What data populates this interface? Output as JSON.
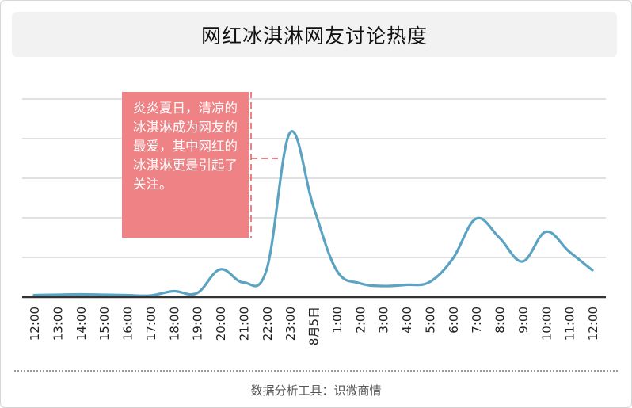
{
  "title": "网红冰淇淋网友讨论热度",
  "footer": "数据分析工具：识微商情",
  "annotation": "炎炎夏日，清凉的冰淇淋成为网友的最爱，其中网红的冰淇淋更是引起了关注。",
  "colors": {
    "line": "#5aa3c2",
    "grid": "#cfcfcf",
    "axis": "#333333",
    "callout": "#ee8285",
    "callout_leader": "#e05a5e"
  },
  "chart_data": {
    "type": "line",
    "title": "网红冰淇淋网友讨论热度",
    "xlabel": "",
    "ylabel": "",
    "ylim": [
      0,
      5
    ],
    "grid": true,
    "categories": [
      "12:00",
      "13:00",
      "14:00",
      "15:00",
      "16:00",
      "17:00",
      "18:00",
      "19:00",
      "20:00",
      "21:00",
      "22:00",
      "23:00",
      "8月5日",
      "1:00",
      "2:00",
      "3:00",
      "4:00",
      "5:00",
      "6:00",
      "7:00",
      "8:00",
      "9:00",
      "10:00",
      "11:00",
      "12:00"
    ],
    "values": [
      0.05,
      0.06,
      0.07,
      0.06,
      0.05,
      0.04,
      0.15,
      0.1,
      0.7,
      0.37,
      0.7,
      4.15,
      2.3,
      0.68,
      0.35,
      0.28,
      0.31,
      0.38,
      0.97,
      1.98,
      1.5,
      0.9,
      1.65,
      1.15,
      0.68
    ],
    "series": [
      {
        "values": [
          0.05,
          0.06,
          0.07,
          0.06,
          0.05,
          0.04,
          0.15,
          0.1,
          0.7,
          0.37,
          0.7,
          4.15,
          2.3,
          0.68,
          0.35,
          0.28,
          0.31,
          0.38,
          0.97,
          1.98,
          1.5,
          0.9,
          1.65,
          1.15,
          0.68
        ]
      }
    ]
  }
}
